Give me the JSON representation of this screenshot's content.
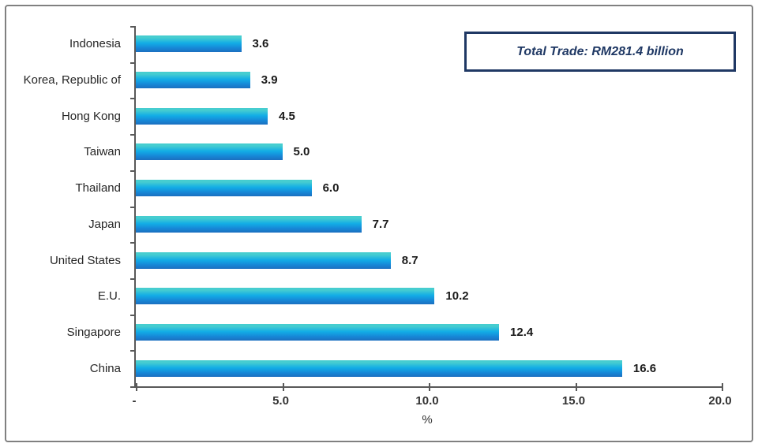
{
  "frame": {
    "border_color": "#808080",
    "background": "#ffffff"
  },
  "annotation": {
    "label": "Total Trade: RM281.4 billion",
    "border_color": "#1f3864",
    "text_color": "#1f3864"
  },
  "chart_data": {
    "type": "bar",
    "orientation": "horizontal",
    "title": "",
    "categories_order": "top-to-bottom",
    "categories": [
      "Indonesia",
      "Korea, Republic of",
      "Hong Kong",
      "Taiwan",
      "Thailand",
      "Japan",
      "United States",
      "E.U.",
      "Singapore",
      "China"
    ],
    "values": [
      3.6,
      3.9,
      4.5,
      5.0,
      6.0,
      7.7,
      8.7,
      10.2,
      12.4,
      16.6
    ],
    "value_labels": [
      "3.6",
      "3.9",
      "4.5",
      "5.0",
      "6.0",
      "7.7",
      "8.7",
      "10.2",
      "12.4",
      "16.6"
    ],
    "xlabel": "%",
    "xlim": [
      0,
      20
    ],
    "xticks": [
      0,
      5,
      10,
      15,
      20
    ],
    "xtick_labels": [
      "-",
      "5.0",
      "10.0",
      "15.0",
      "20.0"
    ],
    "grid": false,
    "legend": false,
    "annotation": "Total Trade: RM281.4 billion",
    "bar_colors": {
      "top": "#46cdd0",
      "mid": "#12ade6",
      "low": "#1689d8",
      "bottom": "#1b6fc0"
    },
    "axis_color": "#595959"
  }
}
